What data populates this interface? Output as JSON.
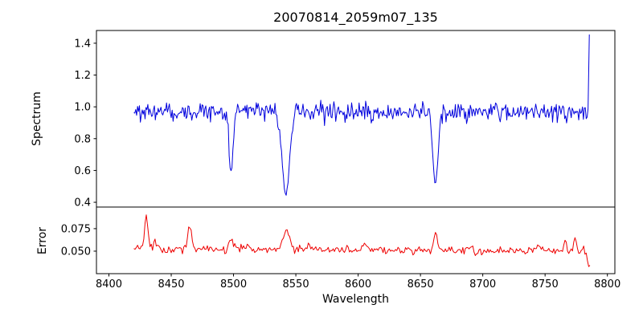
{
  "title": "20070814_2059m07_135",
  "axes": {
    "xlabel": "Wavelength",
    "top_ylabel": "Spectrum",
    "bottom_ylabel": "Error",
    "xticks": [
      8400,
      8450,
      8500,
      8550,
      8600,
      8650,
      8700,
      8750,
      8800
    ],
    "top_yticks": [
      {
        "value": 0.4,
        "label": "0.4"
      },
      {
        "value": 0.6,
        "label": "0.6"
      },
      {
        "value": 0.8,
        "label": "0.8"
      },
      {
        "value": 1.0,
        "label": "1.0"
      },
      {
        "value": 1.2,
        "label": "1.2"
      },
      {
        "value": 1.4,
        "label": "1.4"
      }
    ],
    "bottom_yticks": [
      {
        "value": 0.05,
        "label": "0.050"
      },
      {
        "value": 0.075,
        "label": "0.075"
      }
    ]
  },
  "chart_data": [
    {
      "type": "line",
      "name": "spectrum",
      "title": "20070814_2059m07_135",
      "xlabel": "Wavelength",
      "ylabel": "Spectrum",
      "color": "#0000dd",
      "grid": false,
      "legend": "none",
      "xlim": [
        8390,
        8806
      ],
      "ylim": [
        0.37,
        1.48
      ],
      "x_start": 8420,
      "x_end": 8784.5,
      "x_step": 0.75,
      "continuum": 0.97,
      "noise_sigma": 0.03,
      "absorption_lines": [
        {
          "center": 8498,
          "depth": 0.38,
          "sigma": 1.6
        },
        {
          "center": 8542,
          "depth": 0.52,
          "sigma": 3.0
        },
        {
          "center": 8662,
          "depth": 0.45,
          "sigma": 2.0
        }
      ],
      "edge_spike": {
        "x": 8785.5,
        "y": 1.455
      }
    },
    {
      "type": "line",
      "name": "error",
      "xlabel": "Wavelength",
      "ylabel": "Error",
      "color": "#ee0000",
      "grid": false,
      "legend": "none",
      "xlim": [
        8390,
        8806
      ],
      "ylim": [
        0.025,
        0.099
      ],
      "x_start": 8420,
      "x_end": 8786,
      "x_step": 1.0,
      "baseline": 0.053,
      "baseline_slope": -8e-06,
      "noise_sigma": 0.0022,
      "peaks": [
        {
          "center": 8430,
          "amp": 0.039,
          "sigma": 1.2
        },
        {
          "center": 8437,
          "amp": 0.007,
          "sigma": 1.0
        },
        {
          "center": 8465,
          "amp": 0.028,
          "sigma": 1.3
        },
        {
          "center": 8498,
          "amp": 0.013,
          "sigma": 1.4
        },
        {
          "center": 8512,
          "amp": 0.006,
          "sigma": 1.5
        },
        {
          "center": 8542,
          "amp": 0.021,
          "sigma": 2.6
        },
        {
          "center": 8560,
          "amp": 0.005,
          "sigma": 1.5
        },
        {
          "center": 8605,
          "amp": 0.005,
          "sigma": 2.0
        },
        {
          "center": 8662,
          "amp": 0.017,
          "sigma": 1.8
        },
        {
          "center": 8690,
          "amp": 0.004,
          "sigma": 2.0
        },
        {
          "center": 8745,
          "amp": 0.005,
          "sigma": 1.5
        },
        {
          "center": 8766,
          "amp": 0.013,
          "sigma": 1.0
        },
        {
          "center": 8774,
          "amp": 0.014,
          "sigma": 1.0
        }
      ],
      "end_dip": {
        "start_x": 8781,
        "slope": 0.0035
      }
    }
  ]
}
